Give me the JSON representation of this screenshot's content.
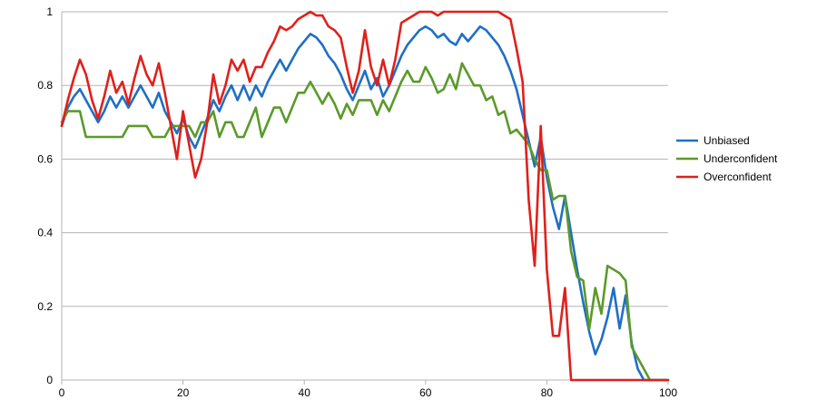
{
  "chart_data": {
    "type": "line",
    "title": "",
    "xlabel": "",
    "ylabel": "",
    "xlim": [
      0,
      100
    ],
    "ylim": [
      0,
      1
    ],
    "x_ticks": [
      "0",
      "20",
      "40",
      "60",
      "80",
      "100"
    ],
    "y_ticks": [
      "0",
      "0.2",
      "0.4",
      "0.6",
      "0.8",
      "1"
    ],
    "grid": "horizontal",
    "legend_position": "right",
    "series": [
      {
        "name": "Unbiased",
        "color": "#1f6fc5",
        "x": [
          0,
          1,
          2,
          3,
          4,
          5,
          6,
          7,
          8,
          9,
          10,
          11,
          12,
          13,
          14,
          15,
          16,
          17,
          18,
          19,
          20,
          21,
          22,
          23,
          24,
          25,
          26,
          27,
          28,
          29,
          30,
          31,
          32,
          33,
          34,
          35,
          36,
          37,
          38,
          39,
          40,
          41,
          42,
          43,
          44,
          45,
          46,
          47,
          48,
          49,
          50,
          51,
          52,
          53,
          54,
          55,
          56,
          57,
          58,
          59,
          60,
          61,
          62,
          63,
          64,
          65,
          66,
          67,
          68,
          69,
          70,
          71,
          72,
          73,
          74,
          75,
          76,
          77,
          78,
          79,
          80,
          81,
          82,
          83,
          84,
          85,
          86,
          87,
          88,
          89,
          90,
          91,
          92,
          93,
          94,
          95,
          96,
          97,
          98,
          99,
          100
        ],
        "values": [
          0.69,
          0.74,
          0.77,
          0.79,
          0.76,
          0.73,
          0.7,
          0.73,
          0.77,
          0.74,
          0.77,
          0.74,
          0.77,
          0.8,
          0.77,
          0.74,
          0.78,
          0.73,
          0.7,
          0.67,
          0.71,
          0.66,
          0.63,
          0.67,
          0.71,
          0.76,
          0.73,
          0.77,
          0.8,
          0.76,
          0.8,
          0.76,
          0.8,
          0.77,
          0.81,
          0.84,
          0.87,
          0.84,
          0.87,
          0.9,
          0.92,
          0.94,
          0.93,
          0.91,
          0.88,
          0.86,
          0.83,
          0.79,
          0.76,
          0.8,
          0.84,
          0.79,
          0.82,
          0.77,
          0.8,
          0.84,
          0.88,
          0.91,
          0.93,
          0.95,
          0.96,
          0.95,
          0.93,
          0.94,
          0.92,
          0.91,
          0.94,
          0.92,
          0.94,
          0.96,
          0.95,
          0.93,
          0.91,
          0.88,
          0.84,
          0.79,
          0.72,
          0.65,
          0.58,
          0.66,
          0.55,
          0.47,
          0.41,
          0.5,
          0.4,
          0.3,
          0.21,
          0.13,
          0.07,
          0.11,
          0.17,
          0.25,
          0.14,
          0.23,
          0.1,
          0.03,
          0.0,
          0.0,
          0.0,
          0.0,
          0.0
        ]
      },
      {
        "name": "Underconfident",
        "color": "#5b9a2a",
        "x": [
          0,
          1,
          2,
          3,
          4,
          5,
          6,
          7,
          8,
          9,
          10,
          11,
          12,
          13,
          14,
          15,
          16,
          17,
          18,
          19,
          20,
          21,
          22,
          23,
          24,
          25,
          26,
          27,
          28,
          29,
          30,
          31,
          32,
          33,
          34,
          35,
          36,
          37,
          38,
          39,
          40,
          41,
          42,
          43,
          44,
          45,
          46,
          47,
          48,
          49,
          50,
          51,
          52,
          53,
          54,
          55,
          56,
          57,
          58,
          59,
          60,
          61,
          62,
          63,
          64,
          65,
          66,
          67,
          68,
          69,
          70,
          71,
          72,
          73,
          74,
          75,
          76,
          77,
          78,
          79,
          80,
          81,
          82,
          83,
          84,
          85,
          86,
          87,
          88,
          89,
          90,
          91,
          92,
          93,
          94,
          95,
          96,
          97,
          98,
          99,
          100
        ],
        "values": [
          0.7,
          0.73,
          0.73,
          0.73,
          0.66,
          0.66,
          0.66,
          0.66,
          0.66,
          0.66,
          0.66,
          0.69,
          0.69,
          0.69,
          0.69,
          0.66,
          0.66,
          0.66,
          0.69,
          0.69,
          0.69,
          0.69,
          0.66,
          0.7,
          0.7,
          0.73,
          0.66,
          0.7,
          0.7,
          0.66,
          0.66,
          0.7,
          0.74,
          0.66,
          0.7,
          0.74,
          0.74,
          0.7,
          0.74,
          0.78,
          0.78,
          0.81,
          0.78,
          0.75,
          0.78,
          0.75,
          0.71,
          0.75,
          0.72,
          0.76,
          0.76,
          0.76,
          0.72,
          0.76,
          0.73,
          0.77,
          0.81,
          0.84,
          0.81,
          0.81,
          0.85,
          0.82,
          0.78,
          0.79,
          0.83,
          0.79,
          0.86,
          0.83,
          0.8,
          0.8,
          0.76,
          0.77,
          0.72,
          0.73,
          0.67,
          0.68,
          0.66,
          0.64,
          0.6,
          0.57,
          0.57,
          0.49,
          0.5,
          0.5,
          0.35,
          0.28,
          0.27,
          0.14,
          0.25,
          0.18,
          0.31,
          0.3,
          0.29,
          0.27,
          0.09,
          0.06,
          0.03,
          0.0,
          0.0,
          0.0,
          0.0
        ]
      },
      {
        "name": "Overconfident",
        "color": "#e0201b",
        "x": [
          0,
          1,
          2,
          3,
          4,
          5,
          6,
          7,
          8,
          9,
          10,
          11,
          12,
          13,
          14,
          15,
          16,
          17,
          18,
          19,
          20,
          21,
          22,
          23,
          24,
          25,
          26,
          27,
          28,
          29,
          30,
          31,
          32,
          33,
          34,
          35,
          36,
          37,
          38,
          39,
          40,
          41,
          42,
          43,
          44,
          45,
          46,
          47,
          48,
          49,
          50,
          51,
          52,
          53,
          54,
          55,
          56,
          57,
          58,
          59,
          60,
          61,
          62,
          63,
          64,
          65,
          66,
          67,
          68,
          69,
          70,
          71,
          72,
          73,
          74,
          75,
          76,
          77,
          78,
          79,
          80,
          81,
          82,
          83,
          84,
          85,
          86,
          87,
          88,
          89,
          90,
          91,
          92,
          93,
          94,
          95,
          96,
          97,
          98,
          99,
          100
        ],
        "values": [
          0.69,
          0.76,
          0.82,
          0.87,
          0.83,
          0.76,
          0.71,
          0.77,
          0.84,
          0.78,
          0.81,
          0.75,
          0.82,
          0.88,
          0.83,
          0.8,
          0.86,
          0.78,
          0.69,
          0.6,
          0.73,
          0.64,
          0.55,
          0.6,
          0.7,
          0.83,
          0.75,
          0.8,
          0.87,
          0.84,
          0.87,
          0.81,
          0.85,
          0.85,
          0.89,
          0.92,
          0.96,
          0.95,
          0.96,
          0.98,
          0.99,
          1.0,
          0.99,
          0.99,
          0.96,
          0.95,
          0.93,
          0.85,
          0.78,
          0.84,
          0.95,
          0.85,
          0.8,
          0.87,
          0.8,
          0.87,
          0.97,
          0.98,
          0.99,
          1.0,
          1.0,
          1.0,
          0.99,
          1.0,
          1.0,
          1.0,
          1.0,
          1.0,
          1.0,
          1.0,
          1.0,
          1.0,
          1.0,
          0.99,
          0.98,
          0.9,
          0.81,
          0.49,
          0.31,
          0.69,
          0.3,
          0.12,
          0.12,
          0.25,
          0.0,
          0.0,
          0.0,
          0.0,
          0.0,
          0.0,
          0.0,
          0.0,
          0.0,
          0.0,
          0.0,
          0.0,
          0.0,
          0.0,
          0.0,
          0.0,
          0.0
        ]
      }
    ]
  }
}
